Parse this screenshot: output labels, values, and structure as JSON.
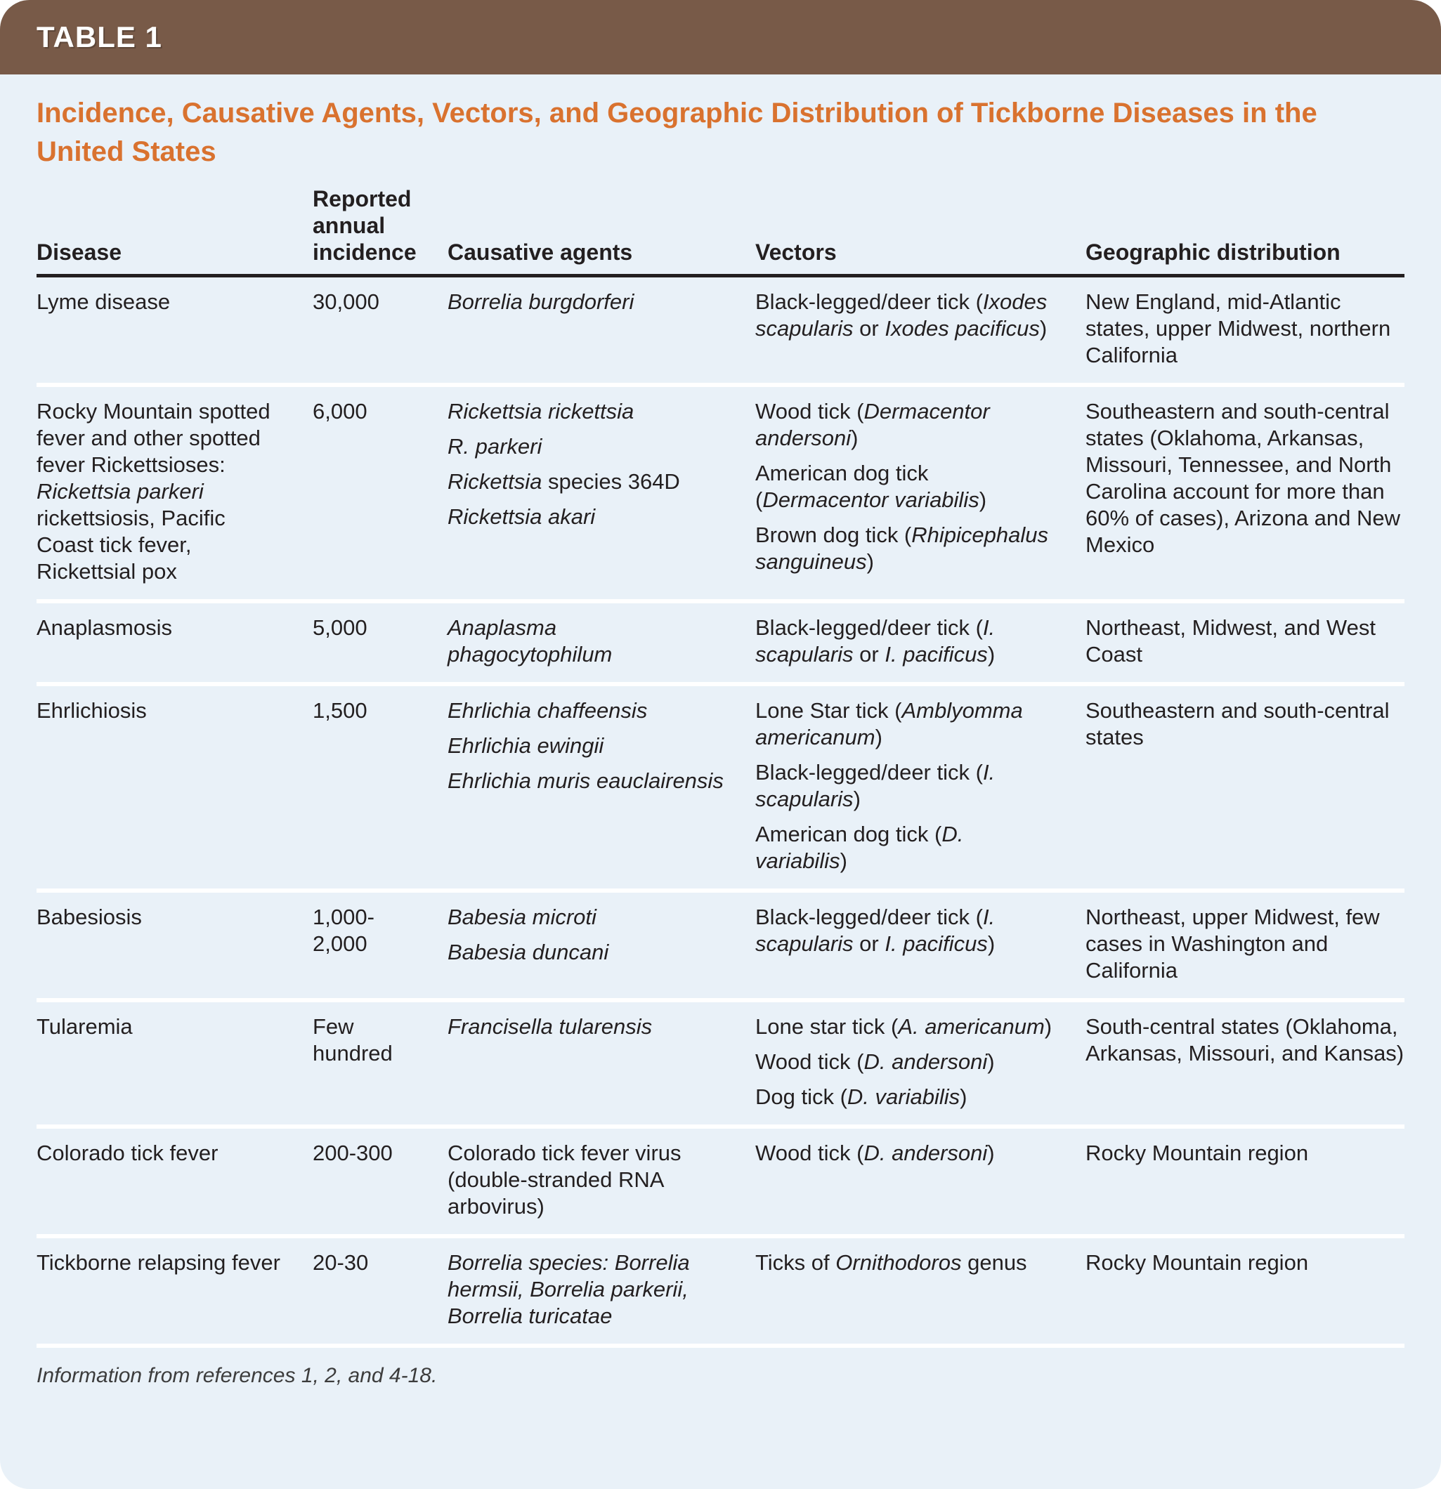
{
  "table_tag": "TABLE 1",
  "title": "Incidence, Causative Agents, Vectors, and Geographic Distribution of Tickborne Diseases in the United States",
  "columns": [
    "Disease",
    "Reported annual incidence",
    "Causative agents",
    "Vectors",
    "Geographic distribution"
  ],
  "rows": [
    {
      "disease": [
        [
          {
            "t": "Lyme disease"
          }
        ]
      ],
      "incidence": [
        [
          {
            "t": "30,000"
          }
        ]
      ],
      "agents": [
        [
          {
            "t": "Borrelia burgdorferi",
            "i": true
          }
        ]
      ],
      "vectors": [
        [
          {
            "t": "Black-legged/deer tick ("
          },
          {
            "t": "Ixodes scapularis",
            "i": true
          },
          {
            "t": " or "
          },
          {
            "t": "Ixodes pacificus",
            "i": true
          },
          {
            "t": ")"
          }
        ]
      ],
      "geography": [
        [
          {
            "t": "New England, mid-Atlantic states, upper Midwest, northern California"
          }
        ]
      ]
    },
    {
      "disease": [
        [
          {
            "t": "Rocky Mountain spotted fever and other spotted fever Rickettsioses: "
          },
          {
            "t": "Rickettsia parkeri",
            "i": true
          },
          {
            "t": " rickettsiosis, Pacific Coast tick fever, Rickettsial pox"
          }
        ]
      ],
      "incidence": [
        [
          {
            "t": "6,000"
          }
        ]
      ],
      "agents": [
        [
          {
            "t": "Rickettsia rickettsia",
            "i": true
          }
        ],
        [
          {
            "t": "R. parkeri",
            "i": true
          }
        ],
        [
          {
            "t": "Rickettsia",
            "i": true
          },
          {
            "t": " species 364D"
          }
        ],
        [
          {
            "t": "Rickettsia akari",
            "i": true
          }
        ]
      ],
      "vectors": [
        [
          {
            "t": "Wood tick ("
          },
          {
            "t": "Dermacentor andersoni",
            "i": true
          },
          {
            "t": ")"
          }
        ],
        [
          {
            "t": "American dog tick ("
          },
          {
            "t": "Dermacentor variabilis",
            "i": true
          },
          {
            "t": ")"
          }
        ],
        [
          {
            "t": "Brown dog tick ("
          },
          {
            "t": "Rhipicephalus sanguineus",
            "i": true
          },
          {
            "t": ")"
          }
        ]
      ],
      "geography": [
        [
          {
            "t": "Southeastern and south-central states (Oklahoma, Arkansas, Missouri, Tennessee, and North Carolina account for more than 60% of cases), Arizona and New Mexico"
          }
        ]
      ]
    },
    {
      "disease": [
        [
          {
            "t": "Anaplasmosis"
          }
        ]
      ],
      "incidence": [
        [
          {
            "t": "5,000"
          }
        ]
      ],
      "agents": [
        [
          {
            "t": "Anaplasma phagocytophilum",
            "i": true
          }
        ]
      ],
      "vectors": [
        [
          {
            "t": "Black-legged/deer tick ("
          },
          {
            "t": "I. scapularis",
            "i": true
          },
          {
            "t": " or "
          },
          {
            "t": "I. pacificus",
            "i": true
          },
          {
            "t": ")"
          }
        ]
      ],
      "geography": [
        [
          {
            "t": "Northeast, Midwest, and West Coast"
          }
        ]
      ]
    },
    {
      "disease": [
        [
          {
            "t": "Ehrlichiosis"
          }
        ]
      ],
      "incidence": [
        [
          {
            "t": "1,500"
          }
        ]
      ],
      "agents": [
        [
          {
            "t": "Ehrlichia chaffeensis",
            "i": true
          }
        ],
        [
          {
            "t": "Ehrlichia ewingii",
            "i": true
          }
        ],
        [
          {
            "t": "Ehrlichia muris eauclairensis",
            "i": true
          }
        ]
      ],
      "vectors": [
        [
          {
            "t": "Lone Star tick ("
          },
          {
            "t": "Amblyomma americanum",
            "i": true
          },
          {
            "t": ")"
          }
        ],
        [
          {
            "t": "Black-legged/deer tick ("
          },
          {
            "t": "I. scapularis",
            "i": true
          },
          {
            "t": ")"
          }
        ],
        [
          {
            "t": "American dog tick ("
          },
          {
            "t": "D. variabilis",
            "i": true
          },
          {
            "t": ")"
          }
        ]
      ],
      "geography": [
        [
          {
            "t": "Southeastern and south-central states"
          }
        ]
      ]
    },
    {
      "disease": [
        [
          {
            "t": "Babesiosis"
          }
        ]
      ],
      "incidence": [
        [
          {
            "t": "1,000-2,000"
          }
        ]
      ],
      "agents": [
        [
          {
            "t": "Babesia microti",
            "i": true
          }
        ],
        [
          {
            "t": "Babesia duncani",
            "i": true
          }
        ]
      ],
      "vectors": [
        [
          {
            "t": "Black-legged/deer tick ("
          },
          {
            "t": "I. scapularis",
            "i": true
          },
          {
            "t": " or "
          },
          {
            "t": "I. pacificus",
            "i": true
          },
          {
            "t": ")"
          }
        ]
      ],
      "geography": [
        [
          {
            "t": "Northeast, upper Midwest, few cases in Washington and California"
          }
        ]
      ]
    },
    {
      "disease": [
        [
          {
            "t": "Tularemia"
          }
        ]
      ],
      "incidence": [
        [
          {
            "t": "Few hundred"
          }
        ]
      ],
      "agents": [
        [
          {
            "t": "Francisella tularensis",
            "i": true
          }
        ]
      ],
      "vectors": [
        [
          {
            "t": "Lone star tick ("
          },
          {
            "t": "A. americanum",
            "i": true
          },
          {
            "t": ")"
          }
        ],
        [
          {
            "t": "Wood tick ("
          },
          {
            "t": "D. andersoni",
            "i": true
          },
          {
            "t": ")"
          }
        ],
        [
          {
            "t": "Dog tick ("
          },
          {
            "t": "D. variabilis",
            "i": true
          },
          {
            "t": ")"
          }
        ]
      ],
      "geography": [
        [
          {
            "t": "South-central states (Oklahoma, Arkansas, Missouri, and Kansas)"
          }
        ]
      ]
    },
    {
      "disease": [
        [
          {
            "t": "Colorado tick fever"
          }
        ]
      ],
      "incidence": [
        [
          {
            "t": "200-300"
          }
        ]
      ],
      "agents": [
        [
          {
            "t": "Colorado tick fever virus (double-stranded RNA arbovirus)"
          }
        ]
      ],
      "vectors": [
        [
          {
            "t": "Wood tick ("
          },
          {
            "t": "D. andersoni",
            "i": true
          },
          {
            "t": ")"
          }
        ]
      ],
      "geography": [
        [
          {
            "t": "Rocky Mountain region"
          }
        ]
      ]
    },
    {
      "disease": [
        [
          {
            "t": "Tickborne relapsing fever"
          }
        ]
      ],
      "incidence": [
        [
          {
            "t": "20-30"
          }
        ]
      ],
      "agents": [
        [
          {
            "t": "Borrelia species: Borrelia hermsii, Borrelia parkerii, Borrelia turicatae",
            "i": true
          }
        ]
      ],
      "vectors": [
        [
          {
            "t": "Ticks of "
          },
          {
            "t": "Ornithodoros",
            "i": true
          },
          {
            "t": " genus"
          }
        ]
      ],
      "geography": [
        [
          {
            "t": "Rocky Mountain region"
          }
        ]
      ]
    }
  ],
  "footnote": "Information from references 1, 2, and 4-18.",
  "colors": {
    "header_bar_brown": "#785a48",
    "title_orange": "#d9722f",
    "body_background": "#e9f1f8",
    "text_ink": "#231f20",
    "row_divider": "#ffffff"
  }
}
